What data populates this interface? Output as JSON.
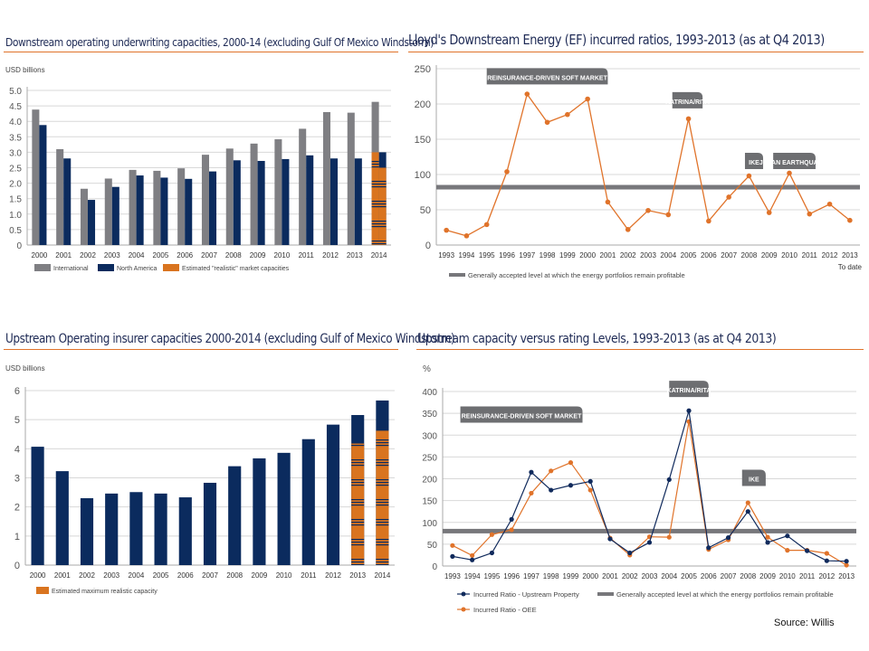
{
  "source": "Source: Willis",
  "colors": {
    "international": "#7f7f83",
    "north_america": "#0b2b5e",
    "realistic": "#d9741f",
    "threshold": "#77777b",
    "oee": "#e0732a",
    "upstream": "#102a5c",
    "callout": "#6d6e71"
  },
  "chart_data": [
    {
      "type": "bar",
      "title": "Downstream operating underwriting capacities, 2000-14 (excluding Gulf Of Mexico Windstorm)",
      "ylabel": "USD billions",
      "ylim": [
        0,
        5
      ],
      "yticks": [
        "0",
        "0.5",
        "1.0",
        "1.5",
        "2.0",
        "2.5",
        "3.0",
        "3.5",
        "4.0",
        "4.5",
        "5.0"
      ],
      "grid": true,
      "legend_placement": "bottom",
      "categories": [
        "2000",
        "2001",
        "2002",
        "2003",
        "2004",
        "2005",
        "2006",
        "2007",
        "2008",
        "2009",
        "2010",
        "2011",
        "2012",
        "2013",
        "2014"
      ],
      "series": [
        {
          "name": "International",
          "values": [
            4.38,
            3.1,
            1.82,
            2.15,
            2.43,
            2.4,
            2.48,
            2.92,
            3.12,
            3.28,
            3.42,
            3.76,
            4.3,
            4.28,
            4.63
          ]
        },
        {
          "name": "North America",
          "values": [
            3.88,
            2.8,
            1.46,
            1.88,
            2.25,
            2.18,
            2.14,
            2.38,
            2.74,
            2.72,
            2.78,
            2.9,
            2.8,
            2.8,
            3.0
          ]
        },
        {
          "name": "Estimated \"realistic\" market capacities",
          "values": {
            "2014": {
              "International": 3.0,
              "North America": 2.5
            }
          }
        }
      ]
    },
    {
      "type": "line",
      "title": "Lloyd's Downstream Energy (EF) incurred ratios, 1993-2013 (as at Q4 2013)",
      "ylim": [
        0,
        250
      ],
      "yticks": [
        "0",
        "50",
        "100",
        "150",
        "200",
        "250"
      ],
      "grid": true,
      "legend_placement": "bottom",
      "categories": [
        "1993",
        "1994",
        "1995",
        "1996",
        "1997",
        "1998",
        "1999",
        "2000",
        "2001",
        "2002",
        "2003",
        "2004",
        "2005",
        "2006",
        "2007",
        "2008",
        "2009",
        "2010",
        "2011",
        "2012",
        "2013"
      ],
      "last_category_note": "To date",
      "values": [
        21,
        13,
        29,
        104,
        214,
        174,
        185,
        207,
        61,
        22,
        49,
        43,
        179,
        34,
        68,
        98,
        46,
        102,
        44,
        58,
        35
      ],
      "threshold": {
        "name": "Generally accepted level at which the energy portfolios remain profitable",
        "value": 82
      },
      "annotations": [
        {
          "text": "REINSURANCE-DRIVEN SOFT MARKET",
          "from": "1995",
          "to": "2001",
          "y": 238
        },
        {
          "text": "KATRINA/RITA",
          "from": "2004.2",
          "to": "2005.7",
          "y": 204
        },
        {
          "text": "IKE",
          "from": "2007.8",
          "to": "2008.7",
          "y": 118
        },
        {
          "text": "JAPAN EARTHQUAKE*",
          "from": "2009.2",
          "to": "2011.3",
          "y": 118
        }
      ]
    },
    {
      "type": "bar",
      "title": "Upstream Operating insurer capacities 2000-2014 (excluding Gulf of Mexico Windstorm)",
      "ylabel": "USD billions",
      "ylim": [
        0,
        6
      ],
      "yticks": [
        "0",
        "1",
        "2",
        "3",
        "4",
        "5",
        "6"
      ],
      "grid": true,
      "legend_placement": "bottom",
      "categories": [
        "2000",
        "2001",
        "2002",
        "2003",
        "2004",
        "2005",
        "2006",
        "2007",
        "2008",
        "2009",
        "2010",
        "2011",
        "2012",
        "2013",
        "2014"
      ],
      "values": [
        4.07,
        3.23,
        2.3,
        2.46,
        2.51,
        2.46,
        2.33,
        2.83,
        3.4,
        3.67,
        3.86,
        4.33,
        4.83,
        5.16,
        5.66
      ],
      "realistic": {
        "name": "Estimated maximum realistic capacity",
        "values": {
          "2013": 4.18,
          "2014": 4.62
        }
      }
    },
    {
      "type": "line",
      "title": "Upstream capacity versus rating Levels, 1993-2013 (as at Q4 2013)",
      "ylabel": "%",
      "ylim": [
        0,
        400
      ],
      "yticks": [
        "0",
        "50",
        "100",
        "150",
        "200",
        "250",
        "300",
        "350",
        "400"
      ],
      "grid": true,
      "legend_placement": "bottom",
      "categories": [
        "1993",
        "1994",
        "1995",
        "1996",
        "1997",
        "1998",
        "1999",
        "2000",
        "2001",
        "2002",
        "2003",
        "2004",
        "2005",
        "2006",
        "2007",
        "2008",
        "2009",
        "2010",
        "2011",
        "2012",
        "2013"
      ],
      "series": [
        {
          "name": "Incurred Ratio - Upstream Property",
          "values": [
            22,
            14,
            30,
            107,
            215,
            174,
            185,
            194,
            62,
            30,
            54,
            198,
            356,
            42,
            65,
            125,
            54,
            69,
            35,
            12,
            11
          ]
        },
        {
          "name": "Incurred Ratio - OEE",
          "values": [
            47,
            24,
            72,
            83,
            167,
            218,
            237,
            174,
            64,
            25,
            67,
            66,
            331,
            38,
            60,
            145,
            66,
            36,
            36,
            29,
            2
          ]
        }
      ],
      "threshold": {
        "name": "Generally accepted level at which the energy portfolios remain profitable",
        "value": 80
      },
      "annotations": [
        {
          "text": "REINSURANCE-DRIVEN SOFT MARKET",
          "from": "1993.4",
          "to": "1999.6",
          "y": 345
        },
        {
          "text": "KATRINA/RITA",
          "from": "2004",
          "to": "2006",
          "y": 404
        },
        {
          "text": "IKE",
          "from": "2007.7",
          "to": "2008.9",
          "y": 200
        }
      ]
    }
  ]
}
